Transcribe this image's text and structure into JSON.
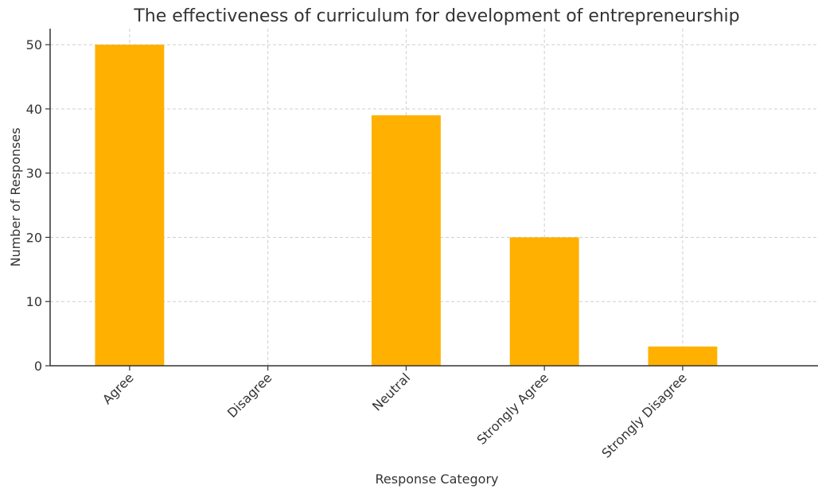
{
  "chart_data": {
    "type": "bar",
    "title": "The effectiveness of curriculum for development of entrepreneurship",
    "xlabel": "Response Category",
    "ylabel": "Number of Responses",
    "categories": [
      "Agree",
      "Disagree",
      "Neutral",
      "Strongly Agree",
      "Strongly Disagree"
    ],
    "values": [
      50,
      0,
      39,
      20,
      3
    ],
    "ylim": [
      0,
      52.5
    ],
    "yticks": [
      0,
      10,
      20,
      30,
      40,
      50
    ],
    "bar_color": "#FFB000",
    "grid": true
  }
}
